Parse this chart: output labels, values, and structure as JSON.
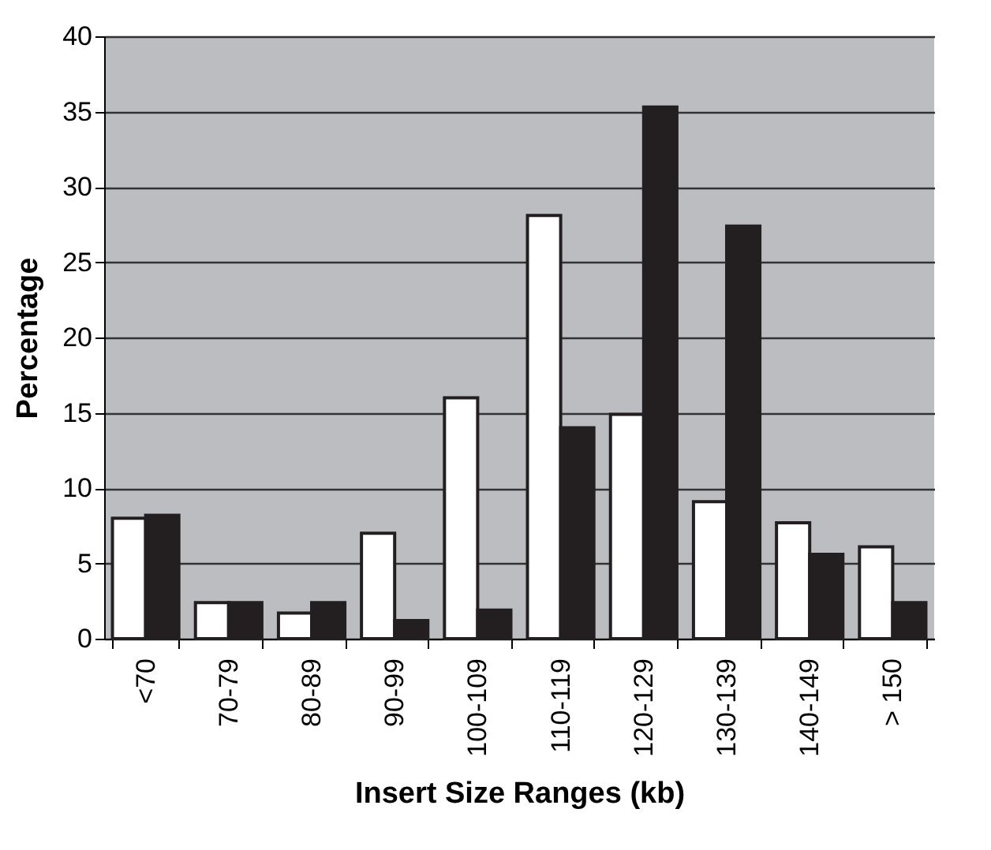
{
  "chart_data": {
    "type": "bar",
    "xlabel": "Insert Size Ranges (kb)",
    "ylabel": "Percentage",
    "categories": [
      "<70",
      "70-79",
      "80-89",
      "90-99",
      "100-109",
      "110-119",
      "120-129",
      "130-139",
      "140-149",
      "> 150"
    ],
    "series": [
      {
        "color": "#ffffff",
        "values": [
          8,
          2.4,
          1.7,
          7,
          16,
          28.1,
          14.9,
          9.1,
          7.7,
          6.1
        ]
      },
      {
        "color": "#231f20",
        "values": [
          8.2,
          2.4,
          2.4,
          1.2,
          1.9,
          14,
          35.3,
          27.4,
          5.6,
          2.4
        ]
      }
    ],
    "ylim": [
      0,
      40
    ],
    "yticks": [
      0,
      5,
      10,
      15,
      20,
      25,
      30,
      35,
      40
    ],
    "grid": "y",
    "legend": false
  }
}
